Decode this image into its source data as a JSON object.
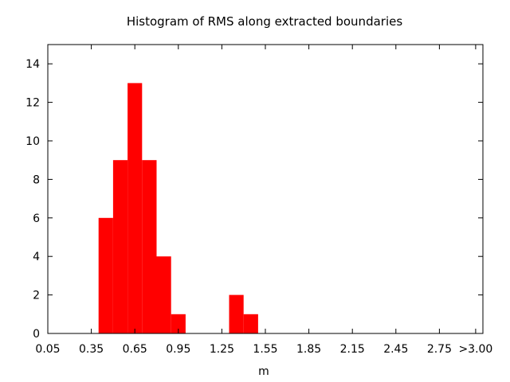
{
  "chart_data": {
    "type": "bar",
    "title": "Histogram of RMS along extracted boundaries",
    "xlabel": "m",
    "ylabel": "",
    "bin_width": 0.1,
    "xlim": [
      0.05,
      3.05
    ],
    "ylim": [
      0,
      15
    ],
    "x_ticks": [
      "0.05",
      "0.35",
      "0.65",
      "0.95",
      "1.25",
      "1.55",
      "1.85",
      "2.15",
      "2.45",
      "2.75",
      ">3.00"
    ],
    "x_tick_values": [
      0.05,
      0.35,
      0.65,
      0.95,
      1.25,
      1.55,
      1.85,
      2.15,
      2.45,
      2.75,
      3.0
    ],
    "y_ticks": [
      0,
      2,
      4,
      6,
      8,
      10,
      12,
      14
    ],
    "bins": [
      {
        "x": 0.45,
        "value": 6
      },
      {
        "x": 0.55,
        "value": 9
      },
      {
        "x": 0.65,
        "value": 13
      },
      {
        "x": 0.75,
        "value": 9
      },
      {
        "x": 0.85,
        "value": 4
      },
      {
        "x": 0.95,
        "value": 1
      },
      {
        "x": 1.35,
        "value": 2
      },
      {
        "x": 1.45,
        "value": 1
      }
    ],
    "bar_color": "#ff0000",
    "grid": false,
    "legend": "none"
  }
}
